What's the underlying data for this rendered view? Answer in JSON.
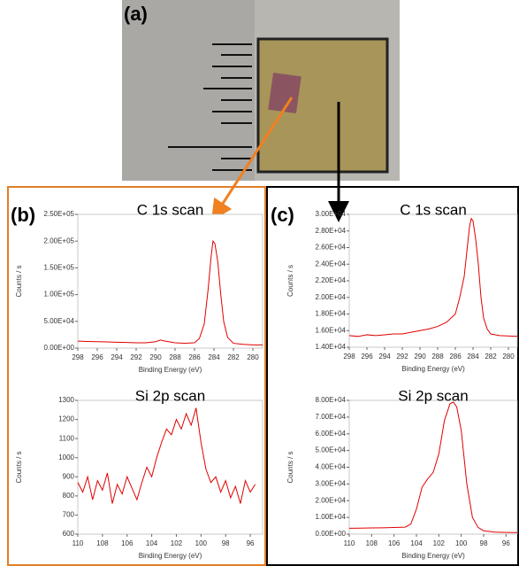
{
  "panel_labels": [
    "(a)",
    "(b)",
    "(c)"
  ],
  "chart_data": [
    {
      "type": "line",
      "title": "C 1s scan",
      "x_label": "Binding Energy (eV)",
      "y_label": "Counts / s",
      "reverse_x": true,
      "xlim": [
        298,
        279
      ],
      "xticks": [
        298,
        296,
        294,
        292,
        290,
        288,
        286,
        284,
        282,
        280
      ],
      "ylim": [
        0,
        250000
      ],
      "yticks": [
        {
          "value": 0,
          "label": "0.00E+00"
        },
        {
          "value": 50000,
          "label": "5.00E+04"
        },
        {
          "value": 100000,
          "label": "1.00E+05"
        },
        {
          "value": 150000,
          "label": "1.50E+05"
        },
        {
          "value": 200000,
          "label": "2.00E+05"
        },
        {
          "value": 250000,
          "label": "2.50E+05"
        }
      ],
      "series": [
        {
          "color": "#e00000",
          "x": [
            298,
            297,
            296,
            295,
            294,
            293,
            292,
            291,
            290,
            289.5,
            289,
            288,
            287,
            286,
            285.5,
            285,
            284.6,
            284.3,
            284.1,
            283.9,
            283.6,
            283.3,
            283,
            282.6,
            282,
            281,
            280,
            279
          ],
          "values": [
            13000,
            12500,
            12000,
            11500,
            11000,
            10500,
            10000,
            10000,
            12000,
            15000,
            13000,
            10000,
            9000,
            10000,
            18000,
            45000,
            110000,
            170000,
            200000,
            195000,
            160000,
            100000,
            50000,
            20000,
            9000,
            7000,
            6000,
            6000
          ]
        }
      ]
    },
    {
      "type": "line",
      "title": "Si 2p scan",
      "x_label": "Binding Energy (eV)",
      "y_label": "Counts / s",
      "reverse_x": true,
      "xlim": [
        110,
        95
      ],
      "xticks": [
        110,
        108,
        106,
        104,
        102,
        100,
        98,
        96
      ],
      "ylim": [
        600,
        1300
      ],
      "yticks": [
        600,
        700,
        800,
        900,
        1000,
        1100,
        1200,
        1300
      ],
      "series": [
        {
          "color": "#e00000",
          "x": [
            110,
            109.6,
            109.2,
            108.8,
            108.4,
            108,
            107.6,
            107.2,
            106.8,
            106.4,
            106,
            105.6,
            105.2,
            104.8,
            104.4,
            104,
            103.6,
            103.2,
            102.8,
            102.4,
            102,
            101.6,
            101.2,
            100.8,
            100.4,
            100,
            99.6,
            99.2,
            98.8,
            98.4,
            98,
            97.6,
            97.2,
            96.8,
            96.4,
            96,
            95.6
          ],
          "values": [
            870,
            820,
            900,
            780,
            880,
            830,
            920,
            760,
            860,
            810,
            900,
            840,
            780,
            870,
            950,
            900,
            1000,
            1080,
            1150,
            1120,
            1200,
            1150,
            1230,
            1170,
            1260,
            1080,
            940,
            870,
            900,
            820,
            880,
            790,
            850,
            760,
            880,
            820,
            860
          ]
        }
      ]
    },
    {
      "type": "line",
      "title": "C 1s scan",
      "x_label": "Binding Energy (eV)",
      "y_label": "Counts / s",
      "reverse_x": true,
      "xlim": [
        298,
        279
      ],
      "xticks": [
        298,
        296,
        294,
        292,
        290,
        288,
        286,
        284,
        282,
        280
      ],
      "ylim": [
        14000,
        30000
      ],
      "yticks": [
        {
          "value": 14000,
          "label": "1.40E+04"
        },
        {
          "value": 16000,
          "label": "1.60E+04"
        },
        {
          "value": 18000,
          "label": "1.80E+04"
        },
        {
          "value": 20000,
          "label": "2.00E+04"
        },
        {
          "value": 22000,
          "label": "2.20E+04"
        },
        {
          "value": 24000,
          "label": "2.40E+04"
        },
        {
          "value": 26000,
          "label": "2.60E+04"
        },
        {
          "value": 28000,
          "label": "2.80E+04"
        },
        {
          "value": 30000,
          "label": "3.00E+04"
        }
      ],
      "series": [
        {
          "color": "#e00000",
          "x": [
            298,
            297,
            296,
            295,
            294,
            293,
            292,
            291,
            290,
            289,
            288,
            287,
            286,
            285.5,
            285,
            284.7,
            284.4,
            284.2,
            284,
            283.7,
            283.4,
            283.1,
            282.8,
            282.4,
            282,
            281,
            279
          ],
          "values": [
            15400,
            15300,
            15500,
            15400,
            15500,
            15600,
            15600,
            15800,
            16000,
            16200,
            16500,
            17000,
            18000,
            20000,
            22500,
            25500,
            28500,
            29500,
            29200,
            27000,
            24000,
            20000,
            17500,
            16200,
            15600,
            15400,
            15300
          ]
        }
      ]
    },
    {
      "type": "line",
      "title": "Si 2p scan",
      "x_label": "Binding Energy (eV)",
      "y_label": "Counts / s",
      "reverse_x": true,
      "xlim": [
        110,
        95
      ],
      "xticks": [
        110,
        108,
        106,
        104,
        102,
        100,
        98,
        96
      ],
      "ylim": [
        0,
        80000
      ],
      "yticks": [
        {
          "value": 0,
          "label": "0.00E+00"
        },
        {
          "value": 10000,
          "label": "1.00E+04"
        },
        {
          "value": 20000,
          "label": "2.00E+04"
        },
        {
          "value": 30000,
          "label": "3.00E+04"
        },
        {
          "value": 40000,
          "label": "4.00E+04"
        },
        {
          "value": 50000,
          "label": "5.00E+04"
        },
        {
          "value": 60000,
          "label": "6.00E+04"
        },
        {
          "value": 70000,
          "label": "7.00E+04"
        },
        {
          "value": 80000,
          "label": "8.00E+04"
        }
      ],
      "series": [
        {
          "color": "#e00000",
          "x": [
            110,
            109,
            108,
            107,
            106,
            105,
            104.5,
            104,
            103.5,
            103,
            102.5,
            102,
            101.5,
            101,
            100.7,
            100.4,
            100,
            99.5,
            99,
            98.5,
            98,
            97,
            96,
            95
          ],
          "values": [
            3500,
            3600,
            3700,
            3800,
            4000,
            4200,
            6000,
            15000,
            28000,
            33000,
            37000,
            48000,
            68000,
            78000,
            79000,
            76000,
            62000,
            30000,
            10000,
            4000,
            2000,
            1200,
            1000,
            900
          ]
        }
      ]
    }
  ]
}
